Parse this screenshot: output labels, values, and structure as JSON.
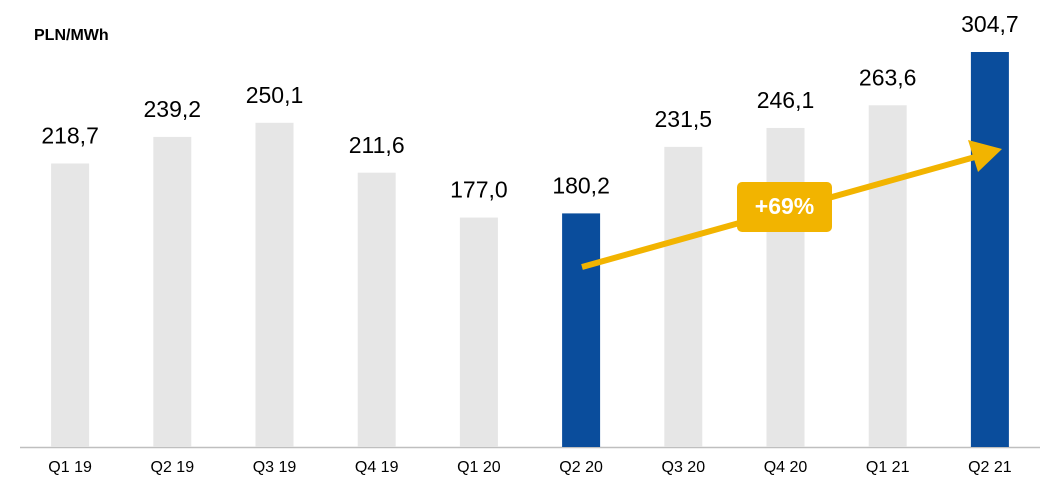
{
  "chart_data": {
    "type": "bar",
    "axis_label": "PLN/MWh",
    "categories": [
      "Q1 19",
      "Q2 19",
      "Q3 19",
      "Q4 19",
      "Q1 20",
      "Q2 20",
      "Q3 20",
      "Q4 20",
      "Q1 21",
      "Q2 21"
    ],
    "values": [
      218.7,
      239.2,
      250.1,
      211.6,
      177.0,
      180.2,
      231.5,
      246.1,
      263.6,
      304.7
    ],
    "value_labels": [
      "218,7",
      "239,2",
      "250,1",
      "211,6",
      "177,0",
      "180,2",
      "231,5",
      "246,1",
      "263,6",
      "304,7"
    ],
    "colors": [
      "#e6e6e6",
      "#e6e6e6",
      "#e6e6e6",
      "#e6e6e6",
      "#e6e6e6",
      "#0a4d9c",
      "#e6e6e6",
      "#e6e6e6",
      "#e6e6e6",
      "#0a4d9c"
    ],
    "annotation": "+69%"
  }
}
